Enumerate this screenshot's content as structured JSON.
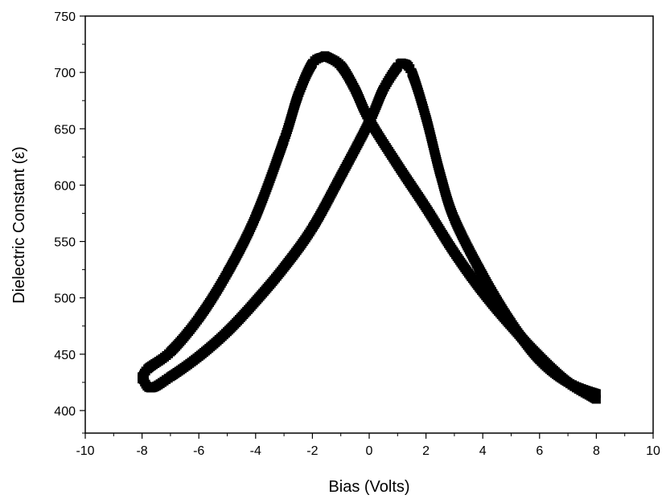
{
  "chart_data": {
    "type": "scatter",
    "title": "",
    "xlabel": "Bias (Volts)",
    "ylabel": "Dielectric Constant (ε)",
    "xlim": [
      -10,
      10
    ],
    "ylim": [
      380,
      750
    ],
    "x_ticks": [
      -10,
      -8,
      -6,
      -4,
      -2,
      0,
      2,
      4,
      6,
      8,
      10
    ],
    "x_tick_labels": [
      "-10",
      "-8",
      "-6",
      "-4",
      "-2",
      "0",
      "2",
      "4",
      "6",
      "8",
      "10"
    ],
    "y_ticks": [
      400,
      450,
      500,
      550,
      600,
      650,
      700,
      750
    ],
    "y_tick_labels": [
      "400",
      "450",
      "500",
      "550",
      "600",
      "650",
      "700",
      "750"
    ],
    "grid": false,
    "marker": "square",
    "color": "#000000",
    "series": [
      {
        "x": [
          8.0,
          7.0,
          6.0,
          5.0,
          4.0,
          3.0,
          2.0,
          1.0,
          0.0,
          -0.5,
          -1.0,
          -1.5,
          -1.6,
          -2.0,
          -2.5,
          -3.0,
          -4.0,
          -5.0,
          -6.0,
          -7.0,
          -7.8,
          -8.0
        ],
        "y": [
          410,
          425,
          448,
          475,
          505,
          540,
          580,
          618,
          658,
          685,
          706,
          714,
          714,
          708,
          680,
          640,
          572,
          522,
          482,
          452,
          437,
          428
        ]
      },
      {
        "x": [
          -8.0,
          -7.7,
          -7.0,
          -6.0,
          -5.0,
          -4.0,
          -3.0,
          -2.0,
          -1.0,
          0.0,
          0.5,
          1.0,
          1.2,
          1.5,
          2.0,
          2.5,
          3.0,
          4.0,
          5.0,
          6.0,
          7.0,
          8.0
        ],
        "y": [
          430,
          420,
          430,
          448,
          470,
          497,
          527,
          562,
          608,
          656,
          685,
          705,
          708,
          700,
          660,
          610,
          570,
          520,
          478,
          445,
          425,
          415
        ]
      }
    ]
  }
}
